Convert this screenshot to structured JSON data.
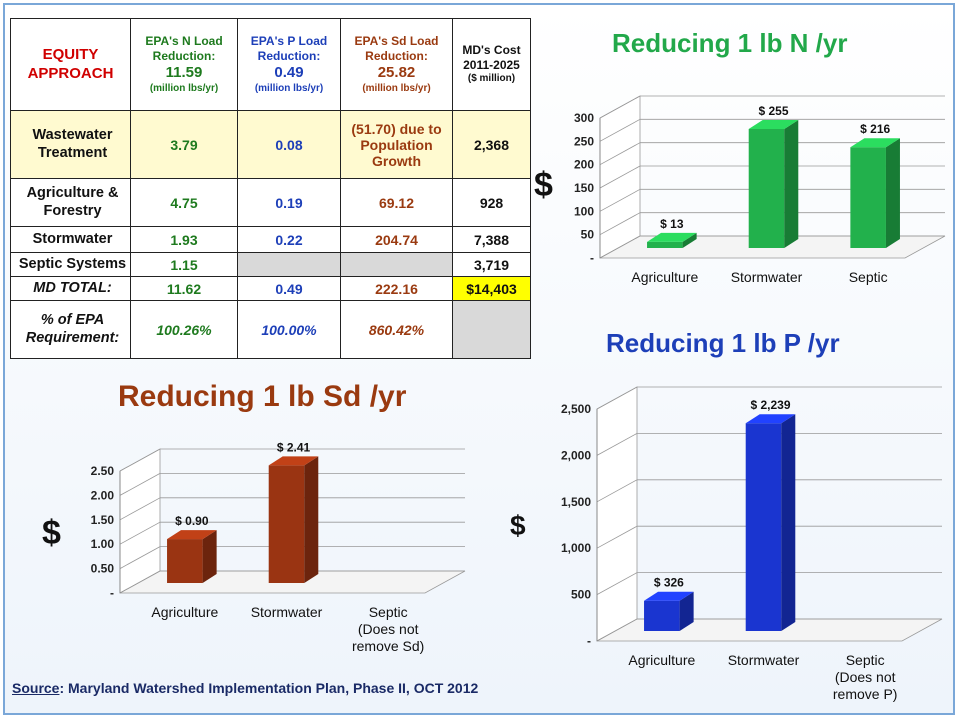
{
  "table": {
    "header": {
      "approach": "EQUITY APPROACH",
      "n_title": "EPA's N Load Reduction:",
      "n_value": "11.59",
      "n_unit": "(million lbs/yr)",
      "p_title": "EPA's P Load Reduction:",
      "p_value": "0.49",
      "p_unit": "(million lbs/yr)",
      "sd_title": "EPA's Sd Load Reduction:",
      "sd_value": "25.82",
      "sd_unit": "(million lbs/yr)",
      "cost_title": "MD's Cost 2011-2025",
      "cost_unit": "($ million)"
    },
    "rows": [
      {
        "sector": "Wastewater Treatment",
        "n": "3.79",
        "p": "0.08",
        "sd": "(51.70) due to Population Growth",
        "cost": "2,368"
      },
      {
        "sector": "Agriculture & Forestry",
        "n": "4.75",
        "p": "0.19",
        "sd": "69.12",
        "cost": "928"
      },
      {
        "sector": "Stormwater",
        "n": "1.93",
        "p": "0.22",
        "sd": "204.74",
        "cost": "7,388"
      },
      {
        "sector": "Septic Systems",
        "n": "1.15",
        "p": "",
        "sd": "",
        "cost": "3,719"
      }
    ],
    "total": {
      "label": "MD TOTAL:",
      "n": "11.62",
      "p": "0.49",
      "sd": "222.16",
      "cost": "$14,403"
    },
    "pct": {
      "label": "% of EPA Requirement:",
      "n": "100.26%",
      "p": "100.00%",
      "sd": "860.42%"
    }
  },
  "chart_data": [
    {
      "type": "bar",
      "title": "Reducing 1 lb N /yr",
      "ylabel": "$",
      "categories": [
        "Agriculture",
        "Stormwater",
        "Septic"
      ],
      "values": [
        13,
        255,
        216
      ],
      "data_labels": [
        "$ 13",
        "$ 255",
        "$ 216"
      ],
      "yticks": [
        "-",
        "50",
        "100",
        "150",
        "200",
        "250",
        "300"
      ],
      "ylim": [
        0,
        300
      ],
      "color": "#22b14c",
      "grid": true
    },
    {
      "type": "bar",
      "title": "Reducing 1 lb P /yr",
      "ylabel": "$",
      "categories": [
        "Agriculture",
        "Stormwater",
        "Septic (Does not remove P)"
      ],
      "values": [
        326,
        2239,
        0
      ],
      "data_labels": [
        "$ 326",
        "$ 2,239",
        ""
      ],
      "yticks": [
        "-",
        "500",
        "1,000",
        "1,500",
        "2,000",
        "2,500"
      ],
      "ylim": [
        0,
        2500
      ],
      "color": "#1a35d0",
      "grid": true
    },
    {
      "type": "bar",
      "title": "Reducing 1 lb Sd /yr",
      "ylabel": "$",
      "categories": [
        "Agriculture",
        "Stormwater",
        "Septic (Does not remove Sd)"
      ],
      "values": [
        0.9,
        2.41,
        0
      ],
      "data_labels": [
        "$  0.90",
        "$ 2.41",
        ""
      ],
      "yticks": [
        "-",
        "0.50",
        "1.00",
        "1.50",
        "2.00",
        "2.50"
      ],
      "ylim": [
        0,
        2.5
      ],
      "color": "#9a3412",
      "grid": true
    }
  ],
  "colors": {
    "n_green": "#22a84a",
    "p_blue": "#1d3fb8",
    "sd_brown": "#9a3a10",
    "highlight": "#ffff00"
  },
  "source": {
    "label": "Source",
    "text": ":  Maryland Watershed Implementation Plan, Phase II, OCT 2012"
  }
}
